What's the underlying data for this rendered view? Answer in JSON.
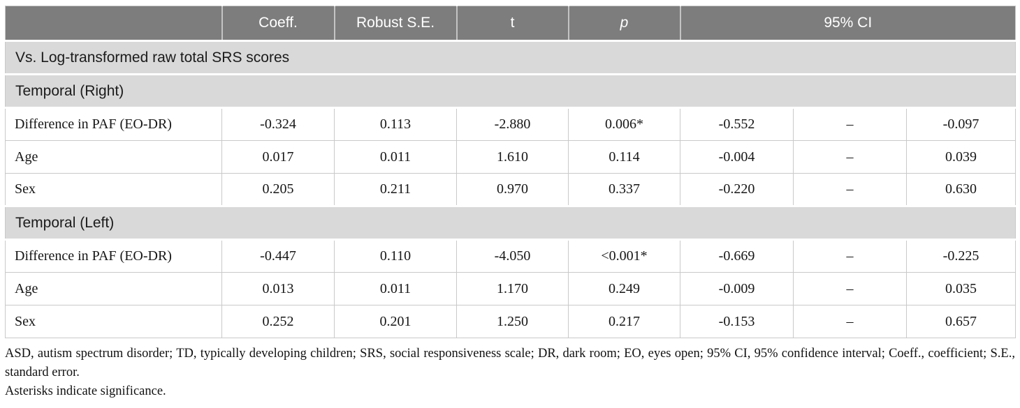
{
  "table": {
    "header": {
      "label": "",
      "coeff": "Coeff.",
      "robust_se": "Robust S.E.",
      "t": "t",
      "p": "p",
      "ci": "95% CI"
    },
    "group_header": "Vs. Log-transformed raw total SRS scores",
    "sections": [
      {
        "title": "Temporal (Right)",
        "rows": [
          {
            "label": "Difference in PAF (EO-DR)",
            "coeff": "-0.324",
            "robust_se": "0.113",
            "t": "-2.880",
            "p": "0.006*",
            "ci_low": "-0.552",
            "ci_sep": "–",
            "ci_high": "-0.097"
          },
          {
            "label": "Age",
            "coeff": "0.017",
            "robust_se": "0.011",
            "t": "1.610",
            "p": "0.114",
            "ci_low": "-0.004",
            "ci_sep": "–",
            "ci_high": "0.039"
          },
          {
            "label": "Sex",
            "coeff": "0.205",
            "robust_se": "0.211",
            "t": "0.970",
            "p": "0.337",
            "ci_low": "-0.220",
            "ci_sep": "–",
            "ci_high": "0.630"
          }
        ]
      },
      {
        "title": "Temporal (Left)",
        "rows": [
          {
            "label": "Difference in PAF (EO-DR)",
            "coeff": "-0.447",
            "robust_se": "0.110",
            "t": "-4.050",
            "p": "<0.001*",
            "ci_low": "-0.669",
            "ci_sep": "–",
            "ci_high": "-0.225"
          },
          {
            "label": "Age",
            "coeff": "0.013",
            "robust_se": "0.011",
            "t": "1.170",
            "p": "0.249",
            "ci_low": "-0.009",
            "ci_sep": "–",
            "ci_high": "0.035"
          },
          {
            "label": "Sex",
            "coeff": "0.252",
            "robust_se": "0.201",
            "t": "1.250",
            "p": "0.217",
            "ci_low": "-0.153",
            "ci_sep": "–",
            "ci_high": "0.657"
          }
        ]
      }
    ],
    "footnotes": [
      "ASD, autism spectrum disorder; TD, typically developing children; SRS, social responsiveness scale; DR, dark room; EO, eyes open; 95% CI, 95% confidence interval; Coeff., coefficient; S.E., standard error.",
      "Asterisks indicate significance."
    ]
  },
  "colors": {
    "header_bg": "#7d7d7d",
    "header_text": "#ffffff",
    "section_bg": "#d9d9d9",
    "body_text": "#161616",
    "border": "#c9c9c9"
  }
}
